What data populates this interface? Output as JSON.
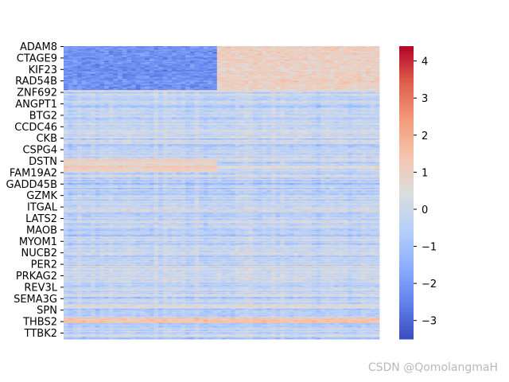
{
  "chart_data": {
    "type": "heatmap",
    "title": "",
    "xlabel": "",
    "ylabel": "",
    "row_labels": [
      "ADAM8",
      "CTAGE9",
      "KIF23",
      "RAD54B",
      "ZNF692",
      "ANGPT1",
      "BTG2",
      "CCDC46",
      "CKB",
      "CSPG4",
      "DSTN",
      "FAM19A2",
      "GADD45B",
      "GZMK",
      "ITGAL",
      "LATS2",
      "MAOB",
      "MYOM1",
      "NUCB2",
      "PER2",
      "PRKAG2",
      "REV3L",
      "SEMA3G",
      "SPN",
      "THBS2",
      "TTBK2"
    ],
    "colormap": "coolwarm",
    "color_range": [
      -3.5,
      4.4
    ],
    "colorbar_ticks": [
      -3,
      -2,
      -1,
      0,
      1,
      2,
      3,
      4
    ],
    "colorbar_tick_labels": [
      "−3",
      "−2",
      "−1",
      "0",
      "1",
      "2",
      "3",
      "4"
    ],
    "n_rows_approx": 260,
    "n_cols_approx": 70,
    "pattern": [
      {
        "region": "top rows (ADAM8–ZNF692), left columns",
        "value_approx": -2.5
      },
      {
        "region": "top rows (ADAM8–ZNF692), right columns",
        "value_approx": 1.2
      },
      {
        "region": "rows DSTN–FAM19A2, left columns",
        "value_approx": 1.0
      },
      {
        "region": "rows THBS2, all columns",
        "value_approx": 1.5
      },
      {
        "region": "remaining rows",
        "value_approx": -0.3
      }
    ]
  },
  "watermark": "CSDN @QomolangmaH"
}
